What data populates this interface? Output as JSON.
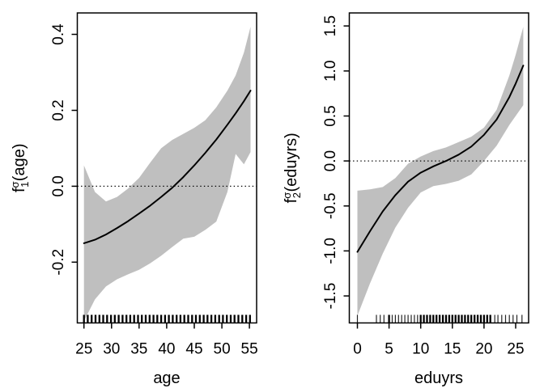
{
  "page": {
    "background": "#ffffff"
  },
  "chart_data": [
    {
      "id": "age-effect",
      "type": "line",
      "title": "",
      "xlabel": "age",
      "ylabel": {
        "base": "f",
        "sub": "1",
        "sup": "σ",
        "arg": "(age)"
      },
      "legend_position": "none",
      "grid": false,
      "xlim": [
        23.8,
        56.3
      ],
      "ylim": [
        -0.36,
        0.4565
      ],
      "zero_line": 0,
      "band_color": "#bfbfbf",
      "line_color": "#000000",
      "axis_color": "#000000",
      "x_ticks": [
        {
          "v": 25,
          "label": "25"
        },
        {
          "v": 30,
          "label": "30"
        },
        {
          "v": 35,
          "label": "35"
        },
        {
          "v": 40,
          "label": "40"
        },
        {
          "v": 45,
          "label": "45"
        },
        {
          "v": 50,
          "label": "50"
        },
        {
          "v": 55,
          "label": "55"
        }
      ],
      "y_ticks": [
        {
          "v": -0.2,
          "label": "-0.2"
        },
        {
          "v": 0,
          "label": "0.0"
        },
        {
          "v": 0.2,
          "label": "0.2"
        },
        {
          "v": 0.4,
          "label": "0.4"
        }
      ],
      "series": {
        "x": [
          25,
          27,
          29,
          31,
          33,
          35,
          37,
          39,
          41,
          43,
          45,
          47,
          49,
          51,
          52.5,
          54,
          55.2
        ],
        "fit": [
          -0.15,
          -0.141,
          -0.127,
          -0.11,
          -0.092,
          -0.072,
          -0.051,
          -0.028,
          -0.004,
          0.024,
          0.055,
          0.088,
          0.123,
          0.162,
          0.192,
          0.224,
          0.252
        ],
        "upper": [
          0.055,
          -0.015,
          -0.04,
          -0.028,
          -0.006,
          0.022,
          0.062,
          0.1,
          0.122,
          0.138,
          0.154,
          0.174,
          0.208,
          0.252,
          0.292,
          0.352,
          0.42
        ],
        "lower": [
          -0.355,
          -0.298,
          -0.264,
          -0.245,
          -0.232,
          -0.22,
          -0.203,
          -0.183,
          -0.16,
          -0.138,
          -0.133,
          -0.115,
          -0.093,
          -0.015,
          0.085,
          0.058,
          0.09
        ]
      },
      "rug_major": [
        25,
        25.7,
        26.4,
        27.1,
        27.8,
        28.5,
        29.2,
        29.9,
        30.6,
        31.3,
        32,
        32.7,
        33.4,
        34.1,
        34.8,
        35.5,
        36.2,
        36.9,
        37.6,
        38.3,
        39,
        39.7,
        40.4,
        41.1,
        41.8,
        42.5,
        43.2,
        43.9,
        44.6,
        45.3,
        46,
        46.7,
        47.4,
        48.1,
        48.8,
        49.5,
        50.2,
        50.9,
        51.6,
        52.3,
        53,
        53.7,
        54.4,
        55.1
      ],
      "rug_minor": []
    },
    {
      "id": "eduyrs-effect",
      "type": "line",
      "title": "",
      "xlabel": "eduyrs",
      "ylabel": {
        "base": "f",
        "sub": "2",
        "sup": "σ",
        "arg": "(eduyrs)"
      },
      "legend_position": "none",
      "grid": false,
      "xlim": [
        -1.28,
        27.05
      ],
      "ylim": [
        -1.8,
        1.645
      ],
      "zero_line": 0,
      "band_color": "#bfbfbf",
      "line_color": "#000000",
      "axis_color": "#000000",
      "x_ticks": [
        {
          "v": 0,
          "label": "0"
        },
        {
          "v": 5,
          "label": "5"
        },
        {
          "v": 10,
          "label": "10"
        },
        {
          "v": 15,
          "label": "15"
        },
        {
          "v": 20,
          "label": "20"
        },
        {
          "v": 25,
          "label": "25"
        }
      ],
      "y_ticks": [
        {
          "v": -1.5,
          "label": "-1.5"
        },
        {
          "v": -1,
          "label": "-1.0"
        },
        {
          "v": -0.5,
          "label": "-0.5"
        },
        {
          "v": 0,
          "label": "0.0"
        },
        {
          "v": 0.5,
          "label": "0.5"
        },
        {
          "v": 1,
          "label": "1.0"
        },
        {
          "v": 1.5,
          "label": "1.5"
        }
      ],
      "series": {
        "x": [
          0,
          2,
          4,
          6,
          8,
          10,
          12,
          14,
          16,
          18,
          20,
          22,
          24,
          25,
          26.2
        ],
        "fit": [
          -1.01,
          -0.78,
          -0.56,
          -0.38,
          -0.23,
          -0.13,
          -0.06,
          0.0,
          0.07,
          0.16,
          0.29,
          0.46,
          0.71,
          0.86,
          1.06
        ],
        "upper": [
          -0.33,
          -0.315,
          -0.29,
          -0.19,
          -0.03,
          0.05,
          0.11,
          0.15,
          0.21,
          0.27,
          0.37,
          0.57,
          0.95,
          1.18,
          1.49
        ],
        "lower": [
          -1.72,
          -1.36,
          -1.03,
          -0.74,
          -0.52,
          -0.35,
          -0.28,
          -0.255,
          -0.22,
          -0.15,
          0.0,
          0.17,
          0.4,
          0.5,
          0.62
        ]
      },
      "rug_major": [
        5,
        10,
        10.5,
        11,
        11.5,
        12,
        12.5,
        13,
        13.5,
        14,
        14.5,
        15,
        15.5,
        16,
        16.5,
        17,
        17.5,
        18,
        18.5,
        19,
        19.5,
        20,
        20.5,
        21
      ],
      "rug_minor": [
        0,
        3,
        3.6,
        4.2,
        5.5,
        6,
        6.5,
        7,
        7.5,
        8,
        8.5,
        9,
        9.5,
        21.7,
        22.2,
        22.8,
        23.4,
        24,
        24.6,
        25.2,
        26
      ]
    }
  ]
}
